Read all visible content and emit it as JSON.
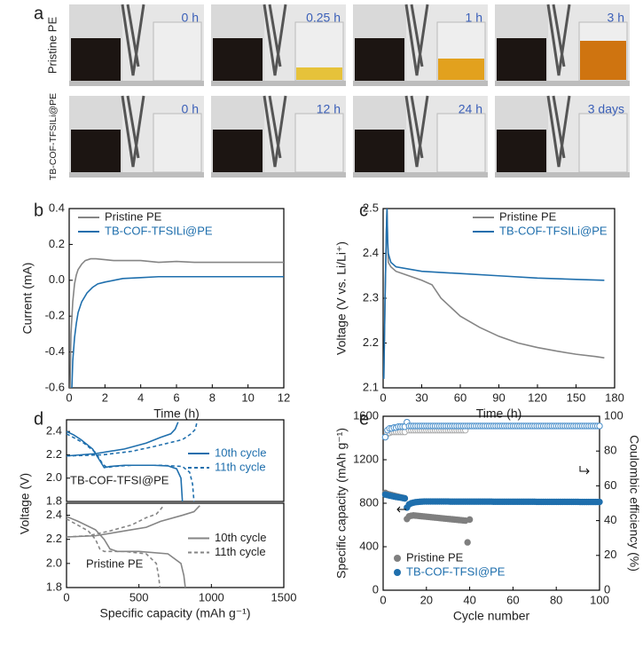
{
  "photo_panel": {
    "panel_label": "a",
    "rows": [
      {
        "label": "Pristine PE",
        "times": [
          "0 h",
          "0.25 h",
          "1 h",
          "3 h"
        ]
      },
      {
        "label": "TB-COF-TFSILi@PE",
        "times": [
          "0 h",
          "12 h",
          "24 h",
          "3 days"
        ]
      }
    ]
  },
  "chart_data": [
    {
      "type": "line",
      "panel_label": "b",
      "xlabel": "Time (h)",
      "ylabel": "Current (mA)",
      "xlim": [
        0,
        12
      ],
      "xticks": [
        0,
        2,
        4,
        6,
        8,
        10,
        12
      ],
      "ylim": [
        -0.6,
        0.4
      ],
      "yticks": [
        -0.6,
        -0.4,
        -0.2,
        {
          "value": 0,
          "label": "0.0"
        },
        0.2,
        0.4
      ],
      "legend": "upper left",
      "series": [
        {
          "name": "Pristine PE",
          "color": "#858585",
          "x": [
            0.05,
            0.1,
            0.2,
            0.3,
            0.4,
            0.5,
            0.7,
            0.9,
            1.2,
            1.5,
            2,
            2.5,
            3,
            4,
            5,
            6,
            7,
            8,
            9,
            10,
            11,
            12
          ],
          "values": [
            -0.6,
            -0.3,
            -0.12,
            -0.02,
            0.03,
            0.06,
            0.09,
            0.11,
            0.12,
            0.12,
            0.115,
            0.11,
            0.11,
            0.11,
            0.1,
            0.105,
            0.1,
            0.1,
            0.1,
            0.1,
            0.1,
            0.1
          ]
        },
        {
          "name": "TB-COF-TFSILi@PE",
          "color": "#1f6fad",
          "x": [
            0.15,
            0.2,
            0.3,
            0.4,
            0.5,
            0.7,
            1,
            1.3,
            1.6,
            2,
            2.5,
            3,
            4,
            5,
            6,
            8,
            10,
            12
          ],
          "values": [
            -0.6,
            -0.45,
            -0.32,
            -0.24,
            -0.18,
            -0.12,
            -0.07,
            -0.04,
            -0.02,
            -0.01,
            0,
            0.01,
            0.015,
            0.02,
            0.02,
            0.02,
            0.02,
            0.02
          ]
        }
      ]
    },
    {
      "type": "line",
      "panel_label": "c",
      "xlabel": "Time (h)",
      "ylabel": "Voltage (V vs. Li/Li⁺)",
      "xlim": [
        0,
        180
      ],
      "xticks": [
        0,
        30,
        60,
        90,
        120,
        150,
        180
      ],
      "ylim": [
        2.1,
        2.5
      ],
      "yticks": [
        2.1,
        2.2,
        2.3,
        2.4,
        2.5
      ],
      "legend": "upper right",
      "series": [
        {
          "name": "Pristine PE",
          "color": "#858585",
          "x": [
            0.5,
            1.5,
            2.5,
            3,
            3.5,
            4,
            6,
            10,
            20,
            30,
            38,
            45,
            60,
            75,
            90,
            105,
            120,
            135,
            150,
            165,
            172
          ],
          "values": [
            2.12,
            2.3,
            2.45,
            2.5,
            2.42,
            2.38,
            2.37,
            2.36,
            2.35,
            2.34,
            2.33,
            2.3,
            2.26,
            2.235,
            2.215,
            2.2,
            2.19,
            2.182,
            2.175,
            2.17,
            2.167
          ]
        },
        {
          "name": "TB-COF-TFSILi@PE",
          "color": "#1f6fad",
          "x": [
            0.5,
            1.5,
            2.5,
            3,
            3.5,
            4,
            6,
            10,
            30,
            60,
            90,
            120,
            150,
            172
          ],
          "values": [
            2.12,
            2.3,
            2.45,
            2.5,
            2.43,
            2.4,
            2.38,
            2.37,
            2.36,
            2.355,
            2.35,
            2.345,
            2.342,
            2.34
          ]
        }
      ]
    },
    {
      "type": "line",
      "panel_label": "d",
      "ylabel": "Voltage (V)",
      "annotation": "TB-COF-TFSI@PE",
      "xlim": [
        0,
        1500
      ],
      "ylim": [
        1.8,
        2.5
      ],
      "yticks": [
        1.8,
        {
          "value": 2,
          "label": "2.0"
        },
        2.2,
        2.4
      ],
      "legend": "center right",
      "series": [
        {
          "name": "10th cycle",
          "color": "#1f6fad",
          "dash": false,
          "x": [
            0,
            50,
            100,
            180,
            230,
            260,
            300,
            400,
            600,
            700,
            760,
            790,
            800,
            null,
            0,
            200,
            400,
            550,
            650,
            720,
            750,
            770
          ],
          "values": [
            2.4,
            2.37,
            2.33,
            2.25,
            2.15,
            2.09,
            2.1,
            2.11,
            2.11,
            2.105,
            2.08,
            2.0,
            1.8,
            null,
            2.19,
            2.21,
            2.25,
            2.3,
            2.35,
            2.38,
            2.42,
            2.48
          ]
        },
        {
          "name": "11th cycle",
          "color": "#1f6fad",
          "dash": true,
          "x": [
            0,
            60,
            120,
            200,
            250,
            280,
            320,
            450,
            650,
            800,
            850,
            870,
            880,
            null,
            0,
            250,
            450,
            600,
            700,
            800,
            860,
            890,
            900
          ],
          "values": [
            2.38,
            2.34,
            2.3,
            2.22,
            2.12,
            2.09,
            2.1,
            2.11,
            2.11,
            2.1,
            2.05,
            1.95,
            1.8,
            null,
            2.19,
            2.2,
            2.23,
            2.27,
            2.3,
            2.33,
            2.38,
            2.42,
            2.48
          ]
        }
      ]
    },
    {
      "type": "line",
      "annotation": "Pristine PE",
      "xlabel": "Specific capacity (mAh g⁻¹)",
      "xlim": [
        0,
        1500
      ],
      "xticks": [
        0,
        500,
        1000,
        1500
      ],
      "ylim": [
        1.8,
        2.5
      ],
      "yticks": [
        1.8,
        {
          "value": 2,
          "label": "2.0"
        },
        2.2,
        2.4
      ],
      "legend": "center right",
      "series": [
        {
          "name": "10th cycle",
          "color": "#858585",
          "dash": false,
          "x": [
            0,
            80,
            200,
            260,
            300,
            350,
            500,
            700,
            790,
            810,
            820,
            null,
            0,
            200,
            400,
            550,
            650,
            800,
            880,
            920
          ],
          "values": [
            2.39,
            2.35,
            2.28,
            2.2,
            2.12,
            2.1,
            2.1,
            2.08,
            2.0,
            1.9,
            1.8,
            null,
            2.22,
            2.23,
            2.27,
            2.3,
            2.35,
            2.4,
            2.43,
            2.48
          ]
        },
        {
          "name": "11th cycle",
          "color": "#858585",
          "dash": true,
          "x": [
            0,
            60,
            150,
            200,
            230,
            260,
            400,
            550,
            620,
            635,
            645,
            null,
            0,
            150,
            300,
            450,
            550,
            620,
            650,
            670
          ],
          "values": [
            2.37,
            2.33,
            2.27,
            2.2,
            2.12,
            2.1,
            2.1,
            2.08,
            2.0,
            1.9,
            1.8,
            null,
            2.22,
            2.23,
            2.27,
            2.32,
            2.38,
            2.41,
            2.45,
            2.48
          ]
        }
      ]
    },
    {
      "type": "scatter",
      "panel_label": "e",
      "xlabel": "Cycle number",
      "ylabel": "Specific capacity (mAh g⁻¹)",
      "y2label": "Coulombic efficiency (%)",
      "xlim": [
        0,
        100
      ],
      "xticks": [
        0,
        20,
        40,
        60,
        80,
        100
      ],
      "ylim": [
        0,
        1600
      ],
      "yticks": [
        0,
        400,
        800,
        1200,
        1600
      ],
      "y2lim": [
        0,
        100
      ],
      "y2ticks": [
        0,
        20,
        40,
        60,
        80,
        100
      ],
      "legend": "lower left",
      "x": [
        1,
        2,
        3,
        4,
        5,
        6,
        7,
        8,
        9,
        10,
        11,
        12,
        13,
        14,
        15,
        16,
        17,
        18,
        19,
        20,
        21,
        22,
        23,
        24,
        25,
        26,
        27,
        28,
        29,
        30,
        31,
        32,
        33,
        34,
        35,
        36,
        37,
        38,
        39,
        40,
        41,
        42,
        43,
        44,
        45,
        46,
        47,
        48,
        49,
        50,
        51,
        52,
        53,
        54,
        55,
        56,
        57,
        58,
        59,
        60,
        61,
        62,
        63,
        64,
        65,
        66,
        67,
        68,
        69,
        70,
        71,
        72,
        73,
        74,
        75,
        76,
        77,
        78,
        79,
        80,
        81,
        82,
        83,
        84,
        85,
        86,
        87,
        88,
        89,
        90,
        91,
        92,
        93,
        94,
        95,
        96,
        97,
        98,
        99,
        100
      ],
      "series": [
        {
          "color": "#a8a8a8",
          "marker": "open",
          "axis": "y2",
          "values": [
            88,
            90,
            90.5,
            91,
            91,
            91,
            91,
            91,
            91,
            91,
            96.6,
            92,
            92,
            92,
            92,
            92,
            92,
            92,
            92,
            92,
            92,
            92,
            92,
            92,
            92,
            92,
            92,
            92,
            92,
            92,
            92,
            92,
            92,
            92,
            92,
            92,
            92,
            92,
            null,
            null,
            null,
            null,
            null,
            null,
            null,
            null,
            null,
            null,
            null,
            null,
            null,
            null,
            null,
            null,
            null,
            null,
            null,
            null,
            null,
            null,
            null,
            null,
            null,
            null,
            null,
            null,
            null,
            null,
            null,
            null,
            null,
            null,
            null,
            null,
            null,
            null,
            null,
            null,
            null,
            null,
            null,
            null,
            null,
            null,
            null,
            null,
            null,
            null,
            null,
            null,
            null,
            null,
            null,
            null,
            null,
            null,
            null,
            null,
            null,
            null
          ]
        },
        {
          "color": "#4a8fca",
          "marker": "open",
          "axis": "y2",
          "values": [
            88,
            92,
            93,
            93,
            93.5,
            93.5,
            94,
            94,
            94,
            94,
            96.6,
            94.4,
            94.4,
            94.4,
            94.4,
            94.4,
            94.4,
            94.4,
            94.4,
            94.4,
            94.4,
            94.4,
            94.4,
            94.4,
            94.4,
            94.4,
            94.4,
            94.4,
            94.4,
            94.4,
            94.4,
            94.4,
            94.4,
            94.4,
            94.4,
            94.4,
            94.4,
            94.4,
            94.4,
            94.4,
            94.4,
            94.4,
            94.4,
            94.4,
            94.4,
            94.4,
            94.4,
            94.4,
            94.4,
            94.4,
            94.4,
            94.4,
            94.4,
            94.4,
            94.4,
            94.4,
            94.4,
            94.4,
            94.4,
            94.4,
            94.4,
            94.4,
            94.4,
            94.4,
            94.4,
            94.4,
            94.4,
            94.4,
            94.4,
            94.4,
            94.4,
            94.4,
            94.4,
            94.4,
            94.4,
            94.4,
            94.4,
            94.4,
            94.4,
            94.4,
            94.4,
            94.4,
            94.4,
            94.4,
            94.4,
            94.4,
            94.4,
            94.4,
            94.4,
            94.4,
            94.4,
            94.4,
            94.4,
            94.4,
            94.4,
            94.4,
            94.4,
            94.4,
            94.4,
            94.4
          ]
        },
        {
          "name": "Pristine PE",
          "color": "#7f7f7f",
          "marker": "filled",
          "values": [
            895,
            885,
            880,
            875,
            870,
            865,
            860,
            855,
            850,
            845,
            655,
            680,
            685,
            688,
            686,
            684,
            682,
            680,
            678,
            676,
            674,
            672,
            670,
            668,
            666,
            664,
            662,
            660,
            658,
            656,
            654,
            652,
            650,
            648,
            646,
            644,
            642,
            640,
            440,
            650,
            null,
            null,
            null,
            null,
            null,
            null,
            null,
            null,
            null,
            null,
            null,
            null,
            null,
            null,
            null,
            null,
            null,
            null,
            null,
            null,
            null,
            null,
            null,
            null,
            null,
            null,
            null,
            null,
            null,
            null,
            null,
            null,
            null,
            null,
            null,
            null,
            null,
            null,
            null,
            null,
            null,
            null,
            null,
            null,
            null,
            null,
            null,
            null,
            null,
            null,
            null,
            null,
            null,
            null,
            null,
            null,
            null,
            null,
            null,
            null
          ]
        },
        {
          "name": "TB-COF-TFSI@PE",
          "color": "#1f6fad",
          "marker": "filled",
          "values": [
            880,
            875,
            870,
            866,
            862,
            858,
            855,
            852,
            848,
            845,
            760,
            790,
            800,
            806,
            810,
            812,
            814,
            815,
            816,
            816,
            816,
            816,
            816,
            816,
            816,
            816,
            816,
            816,
            816,
            816,
            815,
            815,
            815,
            815,
            815,
            815,
            815,
            815,
            815,
            815,
            815,
            815,
            815,
            815,
            815,
            815,
            815,
            815,
            815,
            815,
            814,
            814,
            814,
            814,
            814,
            814,
            814,
            814,
            814,
            814,
            814,
            814,
            814,
            814,
            814,
            814,
            814,
            814,
            814,
            814,
            813,
            813,
            813,
            813,
            813,
            813,
            813,
            813,
            813,
            813,
            813,
            813,
            813,
            813,
            813,
            813,
            813,
            813,
            813,
            813,
            812,
            812,
            812,
            812,
            812,
            812,
            812,
            812,
            812,
            812
          ]
        }
      ]
    }
  ]
}
